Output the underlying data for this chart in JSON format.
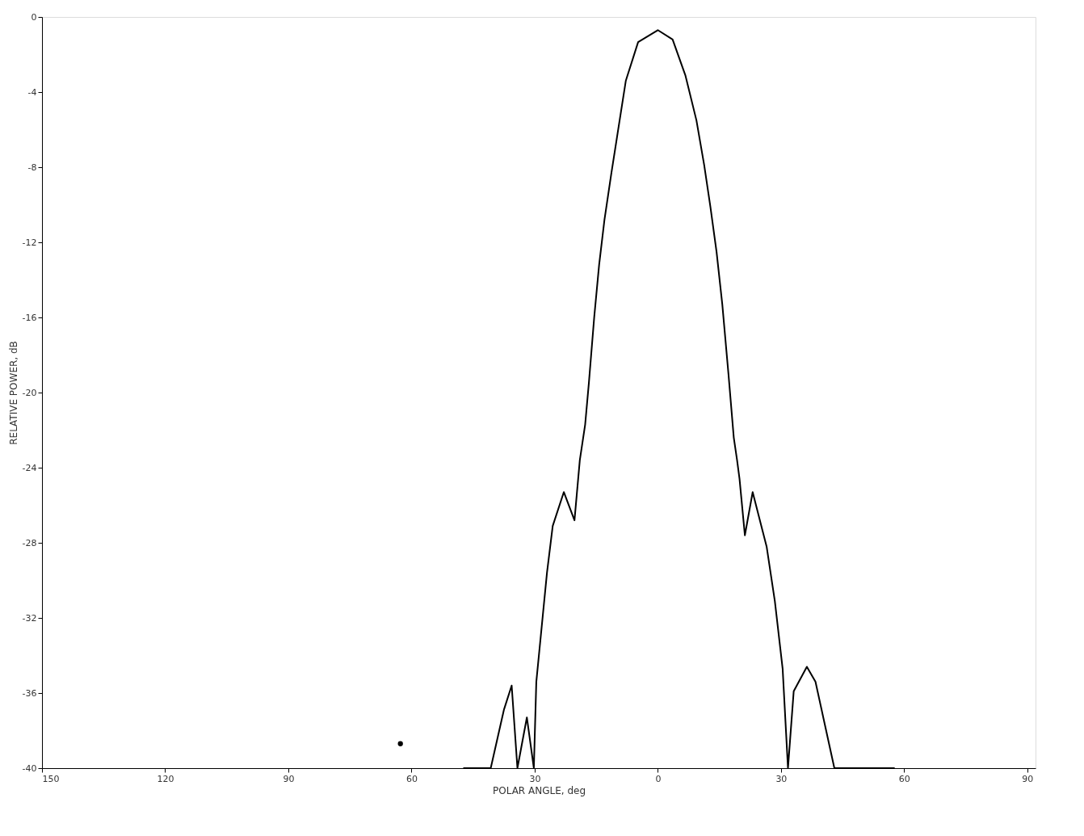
{
  "chart_data": {
    "type": "line",
    "xlabel": "POLAR ANGLE, deg",
    "ylabel": "RELATIVE POWER, dB",
    "xlim": [
      -150,
      92
    ],
    "ylim": [
      -40,
      0
    ],
    "xticks": [
      {
        "value": -150,
        "label": "150"
      },
      {
        "value": -120,
        "label": "120"
      },
      {
        "value": -90,
        "label": "90"
      },
      {
        "value": -60,
        "label": "60"
      },
      {
        "value": -30,
        "label": "30"
      },
      0,
      30,
      60,
      90
    ],
    "yticks": [
      0,
      -4,
      -8,
      -12,
      -16,
      -20,
      -24,
      -28,
      -32,
      -36,
      -40
    ],
    "grid": false,
    "marker": "none",
    "line_style": "solid",
    "series": [
      {
        "color": "#000000",
        "x": [
          -47.4,
          -40.7,
          -37.5,
          -35.6,
          -34.2,
          -31.9,
          -30.2,
          -29.6,
          -28.3,
          -27.0,
          -25.6,
          -22.9,
          -20.3,
          -19.0,
          -17.7,
          -16.8,
          -15.5,
          -14.3,
          -13.0,
          -11.3,
          -9.8,
          -7.8,
          -4.8,
          0,
          3.6,
          6.7,
          9.4,
          11.3,
          12.8,
          14.3,
          15.7,
          17.2,
          18.5,
          19.3,
          19.9,
          21.2,
          23.1,
          25.2,
          26.5,
          28.5,
          30.4,
          31.7,
          33.1,
          36.3,
          38.4,
          43.0,
          57.7
        ],
        "values": [
          -40,
          -40,
          -36.9,
          -35.6,
          -40,
          -37.3,
          -40,
          -35.4,
          -32.5,
          -29.6,
          -27.1,
          -25.3,
          -26.8,
          -23.6,
          -21.7,
          -19.5,
          -16.0,
          -13.2,
          -10.8,
          -8.3,
          -6.2,
          -3.4,
          -1.34,
          -0.7,
          -1.2,
          -3.1,
          -5.5,
          -7.9,
          -10.1,
          -12.5,
          -15.3,
          -19.0,
          -22.4,
          -23.6,
          -24.6,
          -27.6,
          -25.3,
          -27.1,
          -28.2,
          -31.1,
          -34.7,
          -40,
          -35.9,
          -34.6,
          -35.4,
          -40,
          -40
        ]
      },
      {
        "type": "scatter",
        "color": "#000000",
        "x": [
          -62.7
        ],
        "values": [
          -38.7
        ]
      }
    ]
  }
}
